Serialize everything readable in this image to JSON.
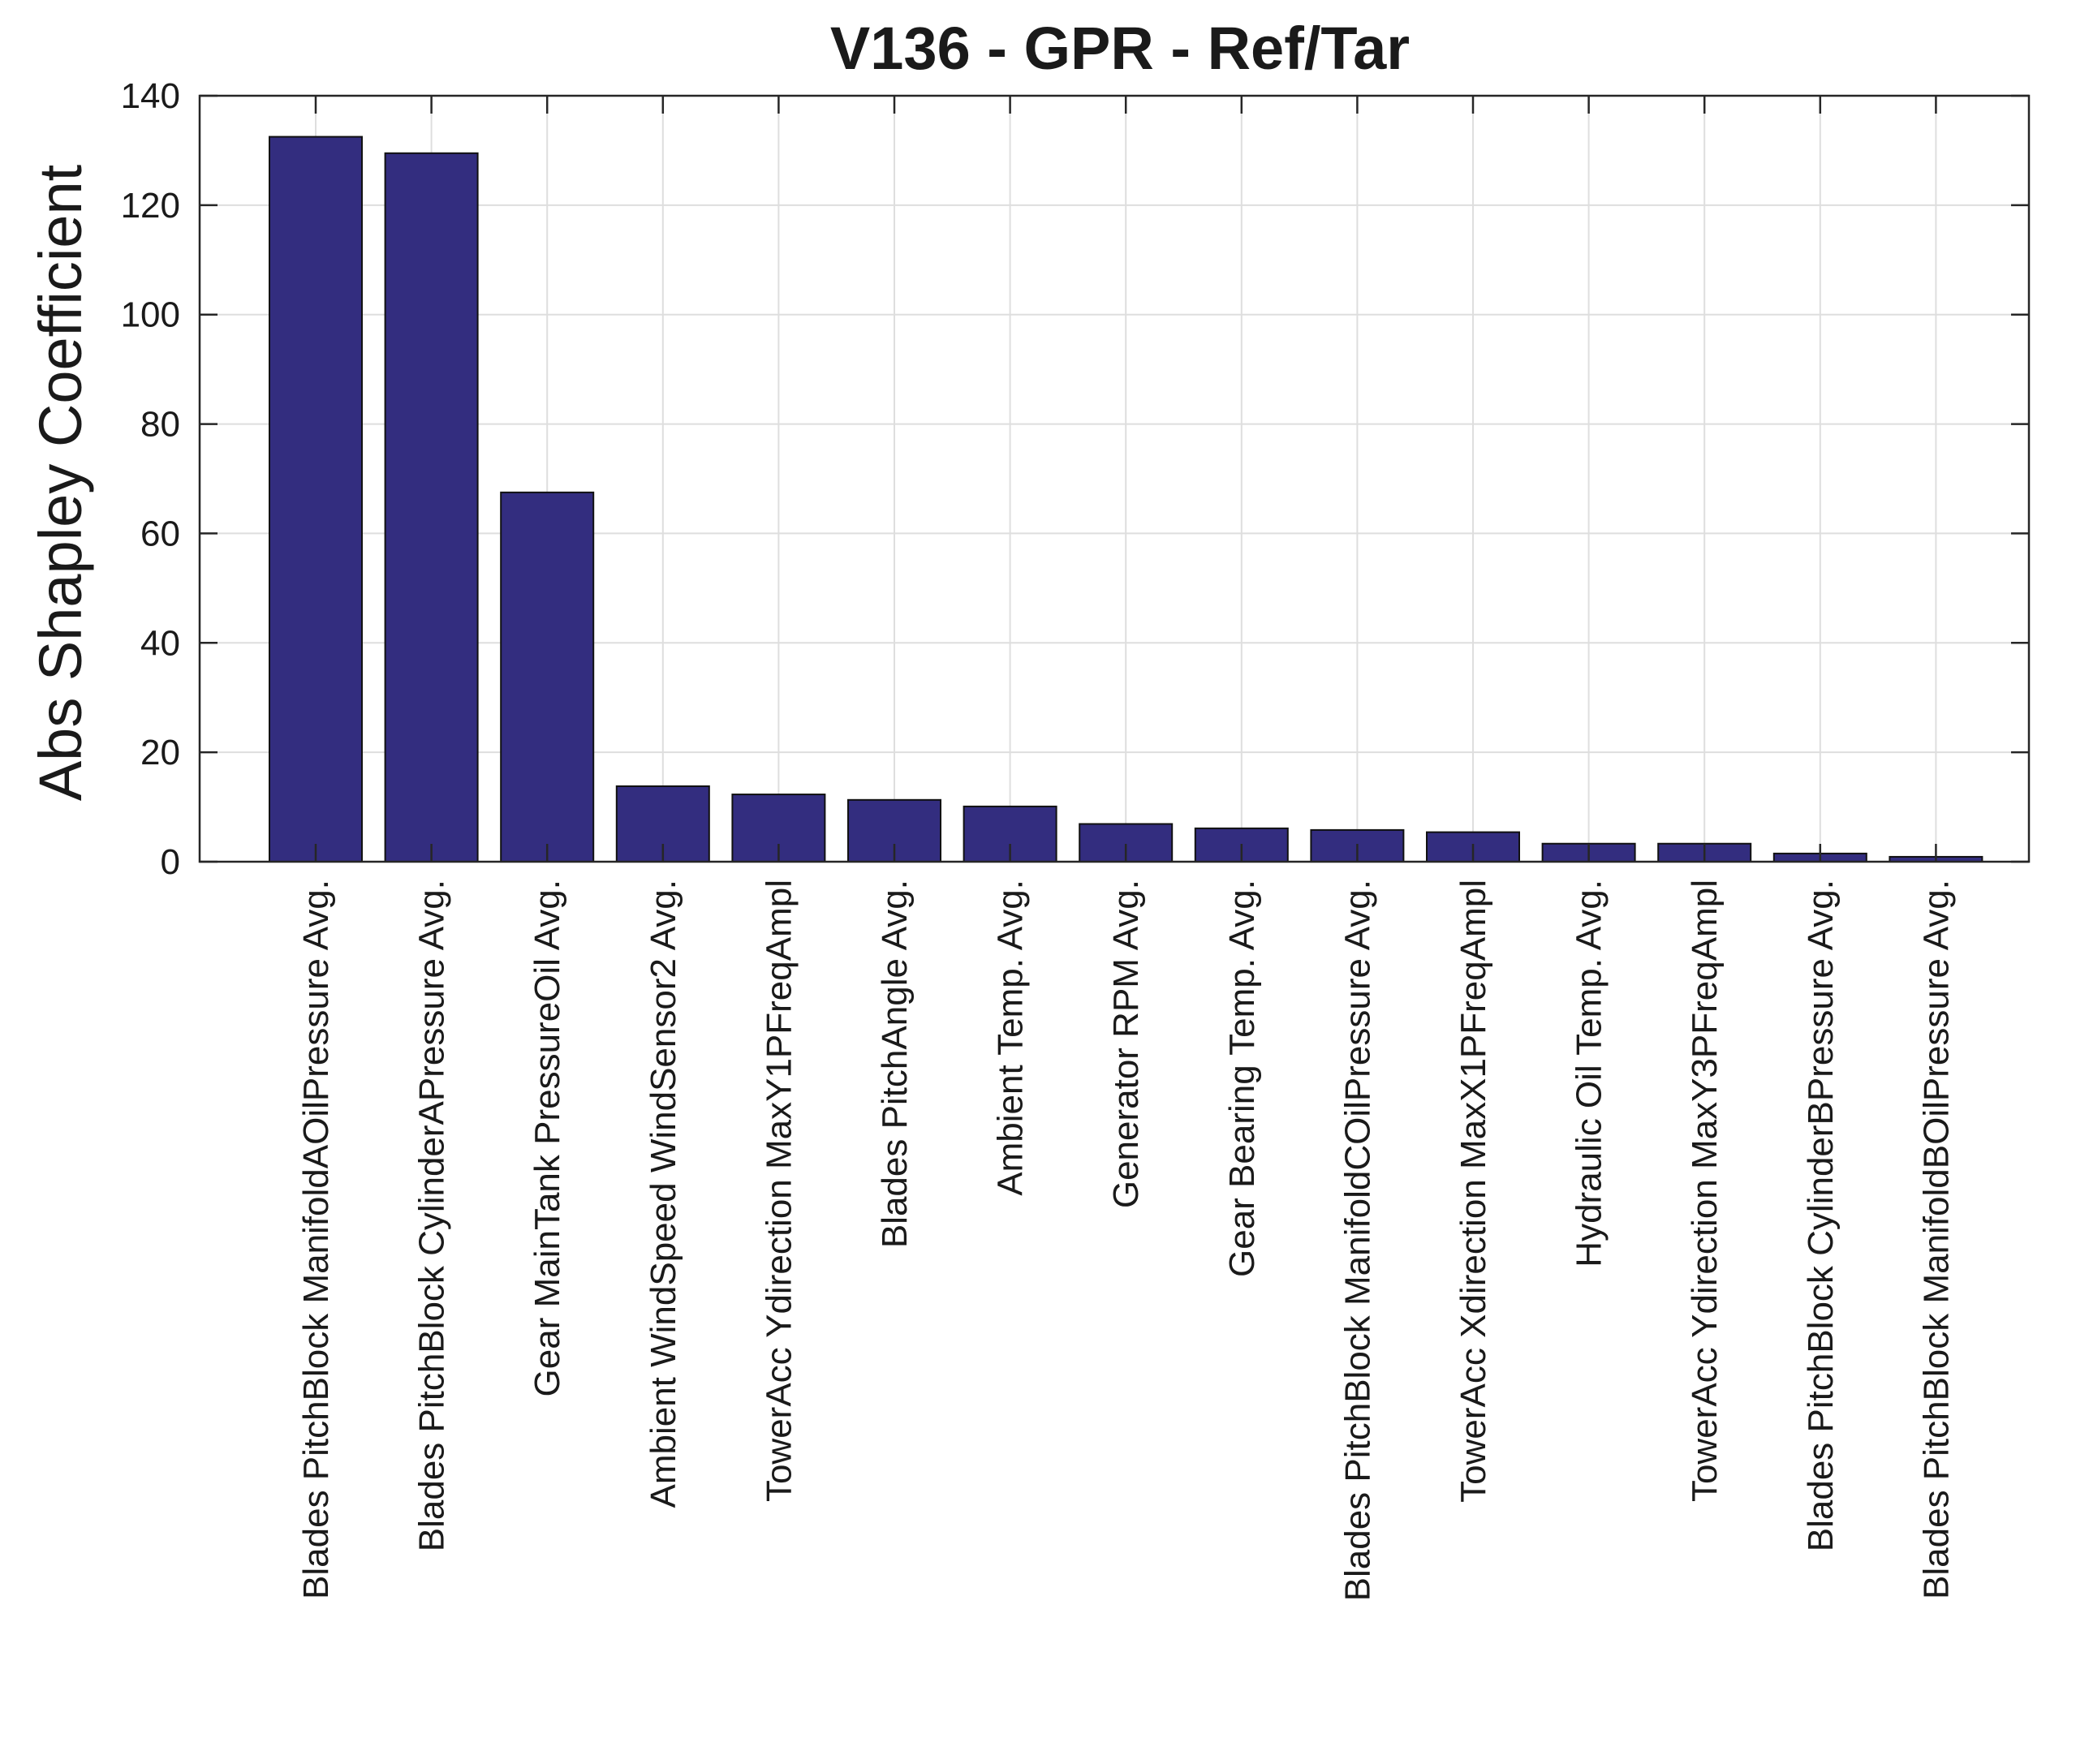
{
  "chart_data": {
    "type": "bar",
    "title": "V136 - GPR - Ref/Tar",
    "xlabel": "",
    "ylabel": "Abs Shapley Coefficient",
    "ylim": [
      0,
      140
    ],
    "yticks": [
      0,
      20,
      40,
      60,
      80,
      100,
      120,
      140
    ],
    "grid": true,
    "legend": "none",
    "bar_color": "#332d7f",
    "categories": [
      "Blades PitchBlock ManifoldAOilPressure Avg.",
      "Blades PitchBlock CylinderAPressure Avg.",
      "Gear MainTank PressureOil Avg.",
      "Ambient WindSpeed WindSensor2 Avg.",
      "TowerAcc Ydirection MaxY1PFreqAmpl",
      "Blades PitchAngle Avg.",
      "Ambient Temp. Avg.",
      "Generator RPM Avg.",
      "Gear Bearing Temp. Avg.",
      "Blades PitchBlock ManifoldCOilPressure Avg.",
      "TowerAcc Xdirection MaxX1PFreqAmpl",
      "Hydraulic Oil Temp. Avg.",
      "TowerAcc Ydirection MaxY3PFreqAmpl",
      "Blades PitchBlock CylinderBPressure Avg.",
      "Blades PitchBlock ManifoldBOilPressure Avg."
    ],
    "values": [
      132.5,
      129.5,
      67.5,
      13.8,
      12.3,
      11.3,
      10.1,
      6.9,
      6.1,
      5.8,
      5.4,
      3.3,
      3.3,
      1.5,
      0.9
    ]
  }
}
